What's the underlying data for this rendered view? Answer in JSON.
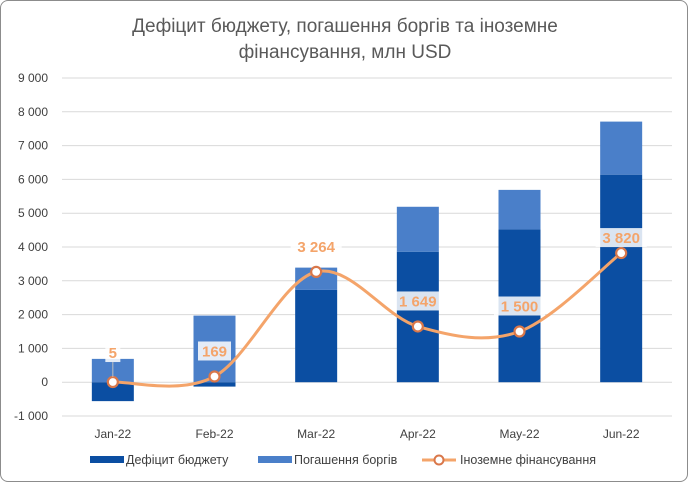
{
  "chart_data": {
    "type": "bar",
    "title_line1": "Дефіцит бюджету, погашення боргів та іноземне",
    "title_line2": "фінансування, млн USD",
    "categories": [
      "Jan-22",
      "Feb-22",
      "Mar-22",
      "Apr-22",
      "May-22",
      "Jun-22"
    ],
    "ylim": [
      -1000,
      9000
    ],
    "yticks": [
      -1000,
      0,
      1000,
      2000,
      3000,
      4000,
      5000,
      6000,
      7000,
      8000,
      9000
    ],
    "ytick_labels": [
      "-1 000",
      "0",
      "1 000",
      "2 000",
      "3 000",
      "4 000",
      "5 000",
      "6 000",
      "7 000",
      "8 000",
      "9 000"
    ],
    "grid": true,
    "legend_position": "bottom",
    "stacked": true,
    "series": [
      {
        "name": "Дефіцит бюджету",
        "kind": "bar",
        "color": "#0b4ea2",
        "values": [
          -560,
          -130,
          2730,
          3860,
          4520,
          6140
        ]
      },
      {
        "name": "Погашення боргів",
        "kind": "bar",
        "color": "#4a7fc9",
        "values": [
          690,
          1970,
          660,
          1330,
          1170,
          1570
        ]
      },
      {
        "name": "Іноземне фінансування",
        "kind": "line",
        "color": "#f4a46a",
        "values": [
          5,
          169,
          3264,
          1649,
          1500,
          3820
        ],
        "labels": [
          "5",
          "169",
          "3 264",
          "1 649",
          "1 500",
          "3 820"
        ]
      }
    ]
  }
}
